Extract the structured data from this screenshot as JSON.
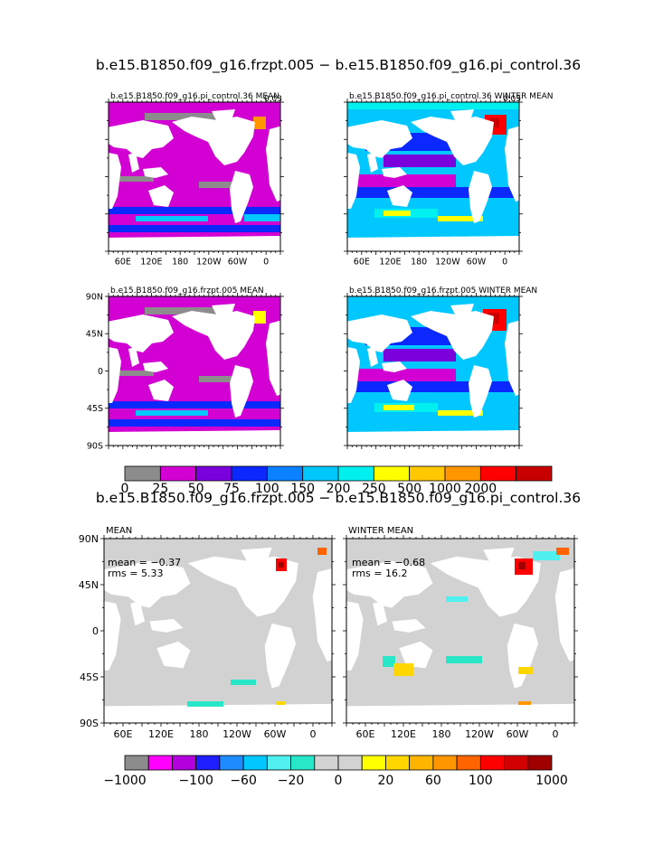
{
  "top_title": "b.e15.B1850.f09_g16.frzpt.005 − b.e15.B1850.f09_g16.pi_control.36",
  "bottom_title": "b.e15.B1850.f09_g16.frzpt.005 − b.e15.B1850.f09_g16.pi_control.36",
  "panels": {
    "p1": {
      "title": "b.e15.B1850.f09_g16.pi_control.36 MEAN",
      "corner": "0.03"
    },
    "p2": {
      "title": "b.e15.B1850.f09_g16.pi_control.36 WINTER MEAN",
      "corner": "0.03"
    },
    "p3": {
      "title": "b.e15.B1850.f09_g16.frzpt.005 MEAN"
    },
    "p4": {
      "title": "b.e15.B1850.f09_g16.frzpt.005 WINTER MEAN"
    },
    "p5": {
      "title": "MEAN",
      "stat_mean": "mean = −0.37",
      "stat_rms": "rms = 5.33"
    },
    "p6": {
      "title": "WINTER MEAN",
      "stat_mean": "mean = −0.68",
      "stat_rms": "rms = 16.2"
    }
  },
  "lon_labels": [
    "60E",
    "120E",
    "180",
    "120W",
    "60W",
    "0"
  ],
  "lat_labels": [
    "90N",
    "45N",
    "0",
    "45S",
    "90S"
  ],
  "colorbar_top": {
    "colors": [
      "#8c8c8c",
      "#d200d2",
      "#7a00dc",
      "#0a28ff",
      "#0a82ff",
      "#00c8ff",
      "#00f0f0",
      "#ffff00",
      "#ffc800",
      "#ff9600",
      "#ff0000",
      "#c80000"
    ],
    "labels": [
      "0",
      "25",
      "50",
      "75",
      "100",
      "150",
      "200",
      "250",
      "500",
      "1000",
      "2000"
    ]
  },
  "colorbar_bottom": {
    "colors": [
      "#8c8c8c",
      "#ff00ff",
      "#b400dc",
      "#1e1eff",
      "#1e8cff",
      "#00c8ff",
      "#50f0f0",
      "#28e6c8",
      "#d2d2d2",
      "#d2d2d2",
      "#ffff00",
      "#ffd700",
      "#ffb400",
      "#ff9600",
      "#ff6400",
      "#ff0000",
      "#d20000",
      "#a00000"
    ],
    "labels": [
      "−1000",
      "−100",
      "−60",
      "−20",
      "0",
      "20",
      "60",
      "100",
      "1000"
    ]
  },
  "colors": {
    "land": "#ffffff",
    "ice": "#8c8c8c",
    "diff_ocean": "#d2d2d2",
    "magenta": "#d200d2",
    "purple": "#7a00dc",
    "blue": "#0a28ff",
    "cyan": "#00c8ff",
    "aqua": "#00f0f0",
    "yellow": "#ffff00",
    "orange": "#ffa000",
    "red": "#ff0000",
    "darkred": "#c80000"
  }
}
